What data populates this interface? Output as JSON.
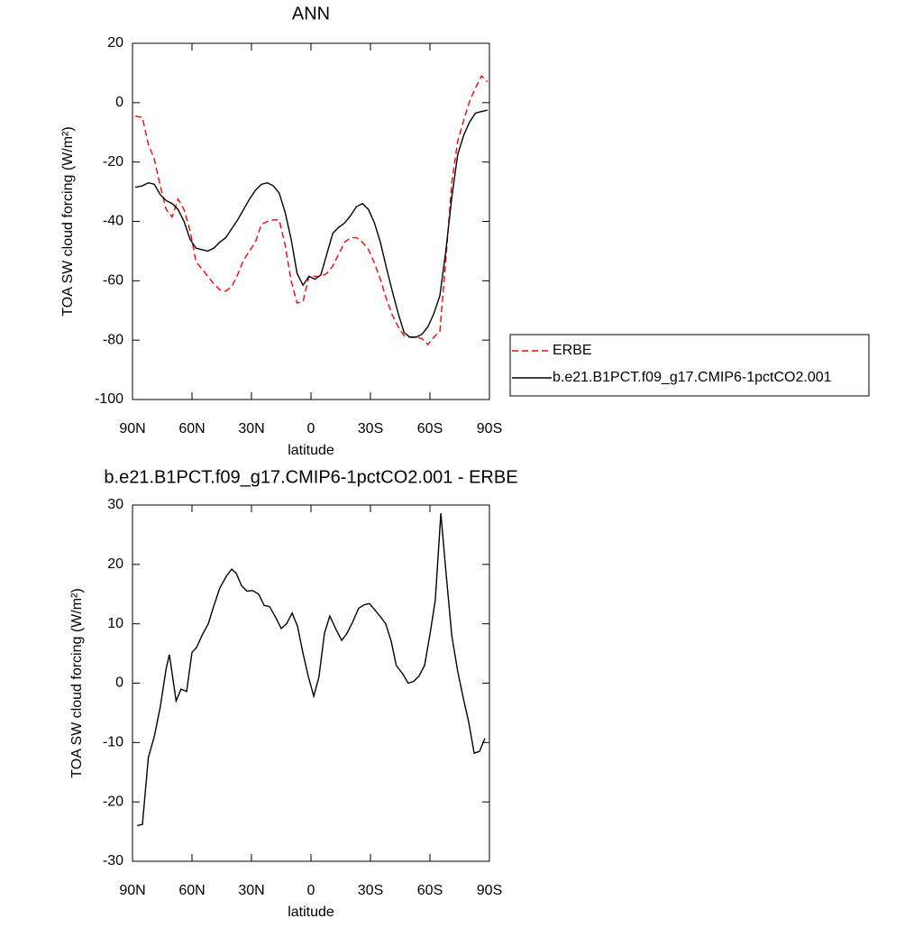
{
  "chart_data": [
    {
      "type": "line",
      "title": "ANN",
      "x_label": "latitude",
      "y_label": "TOA SW cloud forcing (W/m²)",
      "x": [
        88.6,
        85,
        82,
        79,
        76,
        73,
        70,
        67,
        64,
        61,
        58,
        55,
        52,
        49,
        46,
        43,
        40,
        37,
        34,
        31,
        28,
        25,
        22,
        19,
        16,
        13,
        10,
        7,
        4,
        1,
        -2,
        -5,
        -8,
        -11,
        -14,
        -17,
        -20,
        -23,
        -26,
        -29,
        -32,
        -35,
        -38,
        -41,
        -44,
        -47,
        -50,
        -53,
        -56,
        -59,
        -62,
        -65,
        -68,
        -71,
        -74,
        -77,
        -80,
        -83,
        -86,
        -89
      ],
      "series": [
        {
          "name": "ERBE",
          "color": "#ff0000",
          "dashed": true,
          "values": [
            -4.5,
            -5,
            -14,
            -19,
            -28,
            -36,
            -38.5,
            -32.5,
            -36,
            -43,
            -53.5,
            -56,
            -58.5,
            -61,
            -63,
            -63.5,
            -62,
            -58,
            -53,
            -50,
            -47,
            -41,
            -40,
            -39.5,
            -39.5,
            -48,
            -60,
            -67.5,
            -67,
            -58.5,
            -58.5,
            -58.5,
            -57.5,
            -55,
            -51,
            -47,
            -45.5,
            -45.5,
            -47,
            -49.5,
            -54,
            -59.5,
            -66,
            -71.5,
            -75.5,
            -78.5,
            -79,
            -79,
            -79.5,
            -81.5,
            -79,
            -77,
            -53,
            -27,
            -13,
            -6,
            0.5,
            5,
            9,
            7
          ]
        },
        {
          "name": "b.e21.B1PCT.f09_g17.CMIP6-1pctCO2.001",
          "color": "#000000",
          "dashed": false,
          "values": [
            -28.5,
            -28,
            -27,
            -27.5,
            -31,
            -33,
            -34,
            -36,
            -40,
            -46,
            -49,
            -49.5,
            -50,
            -49,
            -47,
            -45.5,
            -42.5,
            -39.5,
            -36,
            -32.5,
            -29.5,
            -27.5,
            -27,
            -28,
            -30.5,
            -37,
            -46,
            -57.5,
            -61.5,
            -58.5,
            -59.5,
            -58,
            -51,
            -44,
            -42,
            -40.5,
            -38,
            -35,
            -34,
            -36,
            -40.5,
            -47,
            -55.5,
            -63.5,
            -71,
            -77.5,
            -79,
            -79,
            -78,
            -75.5,
            -71,
            -65,
            -50,
            -32,
            -17.5,
            -11,
            -6.5,
            -3.5,
            -3,
            -2.5
          ]
        }
      ],
      "xlim": [
        90,
        -90
      ],
      "xticks": [
        {
          "value": 90,
          "label": "90N"
        },
        {
          "value": 60,
          "label": "60N"
        },
        {
          "value": 30,
          "label": "30N"
        },
        0,
        {
          "value": -30,
          "label": "30S"
        },
        {
          "value": -60,
          "label": "60S"
        },
        {
          "value": -90,
          "label": "90S"
        }
      ],
      "ylim": [
        -100,
        20
      ],
      "yticks": [
        -100,
        -80,
        -60,
        -40,
        -20,
        0,
        20
      ],
      "legend": "right"
    },
    {
      "type": "line",
      "title": "b.e21.B1PCT.f09_g17.CMIP6-1pctCO2.001 - ERBE",
      "x_label": "latitude",
      "y_label": "TOA SW cloud forcing (W/m²)",
      "x": [
        87.7,
        85,
        82,
        79,
        76,
        73,
        71.4,
        68,
        65.5,
        62.7,
        60,
        57.7,
        55,
        51.8,
        49,
        46,
        42.7,
        40,
        37.7,
        35,
        32.3,
        29.5,
        26.4,
        23.6,
        20.9,
        17.7,
        15,
        12.3,
        9.5,
        6.8,
        4,
        1.4,
        -1.4,
        -4,
        -6.8,
        -9.5,
        -12.7,
        -15.5,
        -18,
        -20.9,
        -24,
        -26.8,
        -29.5,
        -32.3,
        -35,
        -37.7,
        -40.5,
        -43,
        -46.4,
        -49,
        -51.8,
        -54.5,
        -57.3,
        -60,
        -62.7,
        -65.5,
        -68,
        -71,
        -74,
        -76.8,
        -79.5,
        -82.3,
        -85,
        -87.7
      ],
      "series": [
        {
          "color": "#000000",
          "dashed": false,
          "values": [
            -24,
            -23.8,
            -12.5,
            -9,
            -4,
            2.5,
            4.8,
            -3,
            -1,
            -1.4,
            5.2,
            6,
            8,
            10,
            13,
            16,
            18,
            19.2,
            18.5,
            16.4,
            15.5,
            15.6,
            15,
            13.1,
            12.9,
            11,
            9.2,
            10,
            11.8,
            9.6,
            5,
            1.2,
            -2.2,
            1,
            8.4,
            11.3,
            9,
            7.2,
            8.3,
            10.2,
            12.6,
            13.2,
            13.4,
            12.3,
            11.2,
            10,
            7,
            3,
            1.5,
            0,
            0.3,
            1.2,
            3,
            8.2,
            14,
            28.6,
            19,
            8,
            2,
            -2.5,
            -6.5,
            -11.8,
            -11.5,
            -9.3
          ]
        }
      ],
      "xlim": [
        90,
        -90
      ],
      "xticks": [
        {
          "value": 90,
          "label": "90N"
        },
        {
          "value": 60,
          "label": "60N"
        },
        {
          "value": 30,
          "label": "30N"
        },
        0,
        {
          "value": -30,
          "label": "30S"
        },
        {
          "value": -60,
          "label": "60S"
        },
        {
          "value": -90,
          "label": "90S"
        }
      ],
      "ylim": [
        -30,
        30
      ],
      "yticks": [
        -30,
        -20,
        -10,
        0,
        10,
        20,
        30
      ]
    }
  ]
}
